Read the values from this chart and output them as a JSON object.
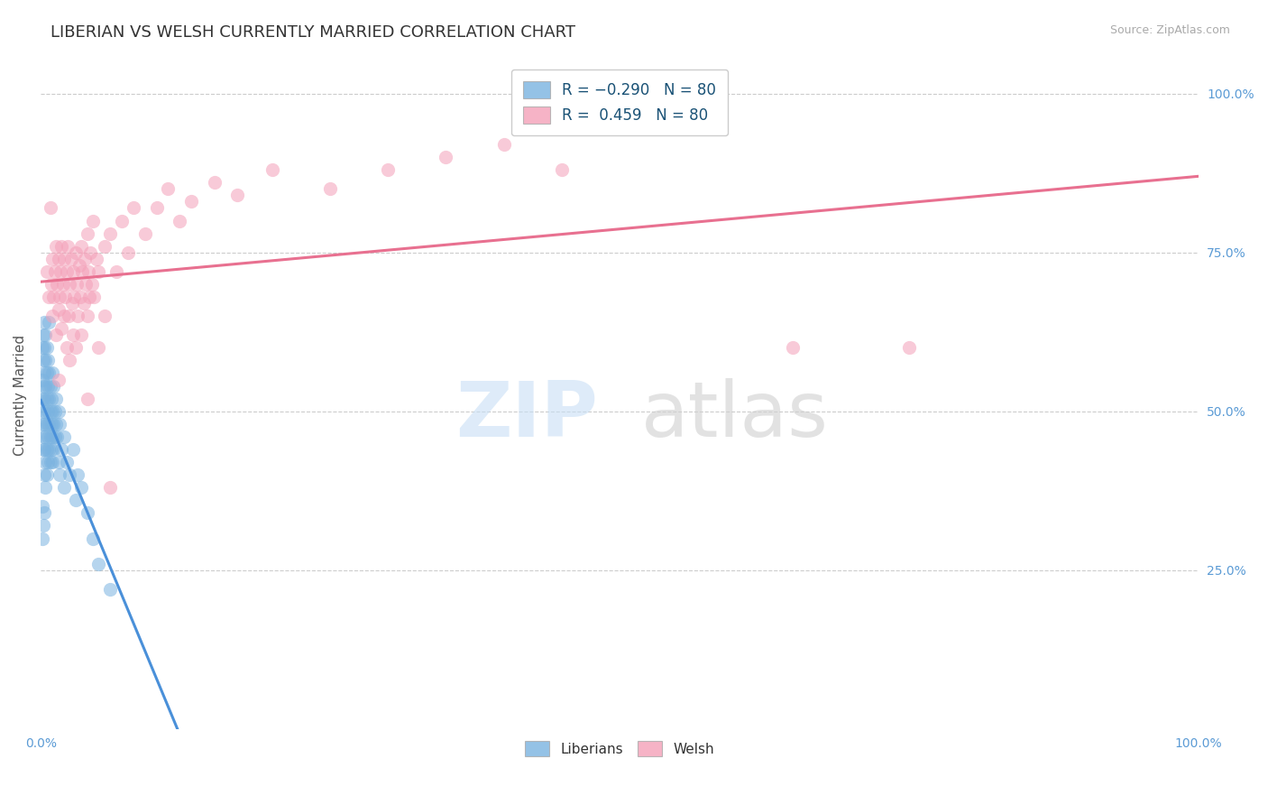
{
  "title": "LIBERIAN VS WELSH CURRENTLY MARRIED CORRELATION CHART",
  "source": "Source: ZipAtlas.com",
  "ylabel": "Currently Married",
  "color_blue": "#7ab3e0",
  "color_pink": "#f4a0b8",
  "blue_R": -0.29,
  "pink_R": 0.459,
  "N": 80,
  "blue_scatter": [
    [
      0.001,
      0.6
    ],
    [
      0.001,
      0.55
    ],
    [
      0.001,
      0.52
    ],
    [
      0.001,
      0.48
    ],
    [
      0.002,
      0.62
    ],
    [
      0.002,
      0.58
    ],
    [
      0.002,
      0.54
    ],
    [
      0.002,
      0.5
    ],
    [
      0.002,
      0.46
    ],
    [
      0.002,
      0.44
    ],
    [
      0.003,
      0.64
    ],
    [
      0.003,
      0.6
    ],
    [
      0.003,
      0.56
    ],
    [
      0.003,
      0.52
    ],
    [
      0.003,
      0.48
    ],
    [
      0.003,
      0.44
    ],
    [
      0.003,
      0.4
    ],
    [
      0.004,
      0.62
    ],
    [
      0.004,
      0.58
    ],
    [
      0.004,
      0.54
    ],
    [
      0.004,
      0.5
    ],
    [
      0.004,
      0.46
    ],
    [
      0.004,
      0.42
    ],
    [
      0.004,
      0.38
    ],
    [
      0.005,
      0.6
    ],
    [
      0.005,
      0.56
    ],
    [
      0.005,
      0.52
    ],
    [
      0.005,
      0.48
    ],
    [
      0.005,
      0.44
    ],
    [
      0.005,
      0.4
    ],
    [
      0.006,
      0.58
    ],
    [
      0.006,
      0.54
    ],
    [
      0.006,
      0.5
    ],
    [
      0.006,
      0.46
    ],
    [
      0.006,
      0.42
    ],
    [
      0.007,
      0.64
    ],
    [
      0.007,
      0.56
    ],
    [
      0.007,
      0.52
    ],
    [
      0.007,
      0.48
    ],
    [
      0.007,
      0.44
    ],
    [
      0.008,
      0.54
    ],
    [
      0.008,
      0.5
    ],
    [
      0.008,
      0.46
    ],
    [
      0.008,
      0.42
    ],
    [
      0.009,
      0.52
    ],
    [
      0.009,
      0.48
    ],
    [
      0.009,
      0.44
    ],
    [
      0.01,
      0.56
    ],
    [
      0.01,
      0.5
    ],
    [
      0.01,
      0.46
    ],
    [
      0.01,
      0.42
    ],
    [
      0.011,
      0.54
    ],
    [
      0.011,
      0.48
    ],
    [
      0.011,
      0.44
    ],
    [
      0.012,
      0.5
    ],
    [
      0.012,
      0.46
    ],
    [
      0.013,
      0.52
    ],
    [
      0.013,
      0.48
    ],
    [
      0.014,
      0.46
    ],
    [
      0.015,
      0.5
    ],
    [
      0.015,
      0.42
    ],
    [
      0.016,
      0.48
    ],
    [
      0.016,
      0.4
    ],
    [
      0.018,
      0.44
    ],
    [
      0.02,
      0.46
    ],
    [
      0.02,
      0.38
    ],
    [
      0.022,
      0.42
    ],
    [
      0.025,
      0.4
    ],
    [
      0.028,
      0.44
    ],
    [
      0.03,
      0.36
    ],
    [
      0.032,
      0.4
    ],
    [
      0.035,
      0.38
    ],
    [
      0.04,
      0.34
    ],
    [
      0.045,
      0.3
    ],
    [
      0.05,
      0.26
    ],
    [
      0.06,
      0.22
    ],
    [
      0.001,
      0.35
    ],
    [
      0.001,
      0.3
    ],
    [
      0.002,
      0.32
    ],
    [
      0.003,
      0.34
    ]
  ],
  "pink_scatter": [
    [
      0.005,
      0.72
    ],
    [
      0.007,
      0.68
    ],
    [
      0.008,
      0.82
    ],
    [
      0.009,
      0.7
    ],
    [
      0.01,
      0.74
    ],
    [
      0.01,
      0.65
    ],
    [
      0.011,
      0.68
    ],
    [
      0.012,
      0.72
    ],
    [
      0.013,
      0.76
    ],
    [
      0.013,
      0.62
    ],
    [
      0.014,
      0.7
    ],
    [
      0.015,
      0.74
    ],
    [
      0.015,
      0.66
    ],
    [
      0.016,
      0.68
    ],
    [
      0.017,
      0.72
    ],
    [
      0.018,
      0.76
    ],
    [
      0.018,
      0.63
    ],
    [
      0.019,
      0.7
    ],
    [
      0.02,
      0.74
    ],
    [
      0.02,
      0.65
    ],
    [
      0.021,
      0.68
    ],
    [
      0.022,
      0.72
    ],
    [
      0.022,
      0.6
    ],
    [
      0.023,
      0.76
    ],
    [
      0.024,
      0.65
    ],
    [
      0.025,
      0.7
    ],
    [
      0.025,
      0.58
    ],
    [
      0.026,
      0.74
    ],
    [
      0.027,
      0.67
    ],
    [
      0.028,
      0.72
    ],
    [
      0.028,
      0.62
    ],
    [
      0.029,
      0.68
    ],
    [
      0.03,
      0.75
    ],
    [
      0.03,
      0.6
    ],
    [
      0.031,
      0.7
    ],
    [
      0.032,
      0.65
    ],
    [
      0.033,
      0.73
    ],
    [
      0.034,
      0.68
    ],
    [
      0.035,
      0.76
    ],
    [
      0.035,
      0.62
    ],
    [
      0.036,
      0.72
    ],
    [
      0.037,
      0.67
    ],
    [
      0.038,
      0.74
    ],
    [
      0.039,
      0.7
    ],
    [
      0.04,
      0.78
    ],
    [
      0.04,
      0.65
    ],
    [
      0.041,
      0.72
    ],
    [
      0.042,
      0.68
    ],
    [
      0.043,
      0.75
    ],
    [
      0.044,
      0.7
    ],
    [
      0.045,
      0.8
    ],
    [
      0.046,
      0.68
    ],
    [
      0.048,
      0.74
    ],
    [
      0.05,
      0.72
    ],
    [
      0.05,
      0.6
    ],
    [
      0.055,
      0.76
    ],
    [
      0.055,
      0.65
    ],
    [
      0.06,
      0.78
    ],
    [
      0.065,
      0.72
    ],
    [
      0.07,
      0.8
    ],
    [
      0.075,
      0.75
    ],
    [
      0.08,
      0.82
    ],
    [
      0.09,
      0.78
    ],
    [
      0.1,
      0.82
    ],
    [
      0.11,
      0.85
    ],
    [
      0.12,
      0.8
    ],
    [
      0.13,
      0.83
    ],
    [
      0.15,
      0.86
    ],
    [
      0.17,
      0.84
    ],
    [
      0.2,
      0.88
    ],
    [
      0.25,
      0.85
    ],
    [
      0.3,
      0.88
    ],
    [
      0.015,
      0.55
    ],
    [
      0.04,
      0.52
    ],
    [
      0.65,
      0.6
    ],
    [
      0.75,
      0.6
    ],
    [
      0.06,
      0.38
    ],
    [
      0.35,
      0.9
    ],
    [
      0.4,
      0.92
    ],
    [
      0.45,
      0.88
    ]
  ],
  "xlim": [
    0.0,
    1.0
  ],
  "ylim": [
    0.0,
    1.05
  ],
  "grid_color": "#cccccc",
  "watermark_blue": "#c8dff5",
  "watermark_gray": "#d0d0d0",
  "watermark_alpha": 0.6,
  "blue_line_solid_end": 0.15,
  "blue_line_dash_end": 0.55
}
